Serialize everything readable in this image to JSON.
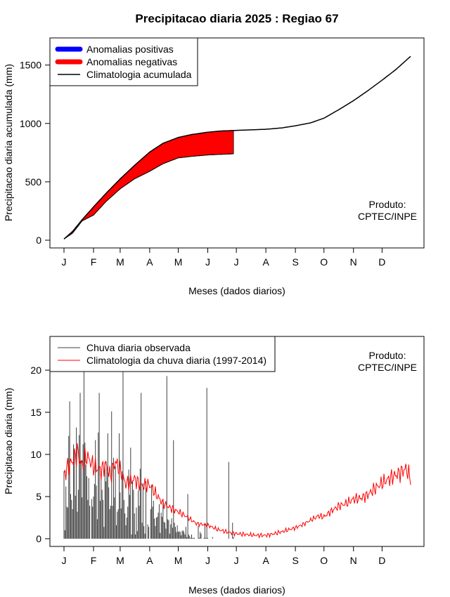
{
  "title": "Precipitacao diaria 2025 : Regiao 67",
  "product_note": {
    "line1": "Produto:",
    "line2": "CPTEC/INPE"
  },
  "colors": {
    "positive_anomaly": "#0000ff",
    "negative_anomaly": "#ff0000",
    "climatology_cumulative": "#000000",
    "observed_rain": "#404040",
    "climatology_daily": "#ff0000"
  },
  "chart_data": [
    {
      "type": "area",
      "name": "accumulated",
      "title": "Precipitacao diaria 2025 : Regiao 67",
      "xlabel": "Meses (dados diarios)",
      "ylabel": "Precipitacao diaria acumulada (mm)",
      "xlim": [
        1,
        365
      ],
      "ylim": [
        0,
        1600
      ],
      "month_ticks": [
        "J",
        "F",
        "M",
        "A",
        "M",
        "J",
        "J",
        "A",
        "S",
        "O",
        "N",
        "D"
      ],
      "month_tick_days": [
        1,
        32,
        60,
        91,
        121,
        152,
        182,
        213,
        244,
        274,
        305,
        335
      ],
      "y_ticks": [
        0,
        500,
        1000,
        1500
      ],
      "legend_position": "top-left",
      "legend": [
        "Anomalias positivas",
        "Anomalias negativas",
        "Climatologia acumulada"
      ],
      "climatology_cumulative": {
        "x": [
          1,
          10,
          20,
          32,
          45,
          60,
          75,
          91,
          105,
          121,
          135,
          152,
          165,
          180,
          200,
          213,
          230,
          244,
          260,
          274,
          290,
          305,
          320,
          335,
          350,
          365
        ],
        "y": [
          10,
          75,
          175,
          285,
          400,
          525,
          640,
          755,
          830,
          880,
          905,
          925,
          935,
          940,
          946,
          950,
          962,
          980,
          1005,
          1045,
          1120,
          1195,
          1280,
          1370,
          1465,
          1575
        ]
      },
      "observed_cumulative": {
        "x": [
          1,
          10,
          20,
          32,
          45,
          60,
          75,
          91,
          105,
          121,
          135,
          152,
          165,
          179
        ],
        "y": [
          10,
          60,
          165,
          215,
          330,
          440,
          525,
          590,
          655,
          705,
          718,
          730,
          735,
          740
        ]
      }
    },
    {
      "type": "line",
      "name": "daily",
      "xlabel": "Meses (dados diarios)",
      "ylabel": "Precipitacao diaria (mm)",
      "xlim": [
        1,
        365
      ],
      "ylim": [
        0,
        20
      ],
      "month_ticks": [
        "J",
        "F",
        "M",
        "A",
        "M",
        "J",
        "J",
        "A",
        "S",
        "O",
        "N",
        "D"
      ],
      "month_tick_days": [
        1,
        32,
        60,
        91,
        121,
        152,
        182,
        213,
        244,
        274,
        305,
        335
      ],
      "y_ticks": [
        0,
        5,
        10,
        15,
        20
      ],
      "legend_position": "top-left",
      "legend": [
        "Chuva diaria observada",
        "Climatologia da chuva diaria (1997-2014)"
      ],
      "observed_daily": {
        "day_start": 1,
        "values": [
          8.0,
          1.0,
          6.2,
          3.8,
          3.7,
          12.2,
          16.3,
          5.3,
          4.6,
          3.5,
          11.2,
          10.2,
          5.1,
          13.2,
          3.2,
          5.8,
          12.3,
          17.3,
          9.3,
          4.9,
          11.2,
          19.8,
          11.4,
          8.8,
          7.4,
          4.6,
          7.2,
          3.9,
          0.0,
          4.7,
          3.8,
          5.0,
          6.5,
          11.7,
          6.3,
          2.3,
          12.6,
          17.3,
          4.5,
          7.3,
          5.8,
          4.6,
          1.4,
          9.1,
          6.8,
          8.5,
          12.5,
          6.1,
          3.5,
          3.9,
          15.1,
          3.9,
          9.6,
          4.9,
          8.6,
          1.6,
          3.2,
          3.5,
          12.5,
          5.5,
          3.6,
          8.0,
          19.8,
          4.6,
          3.0,
          1.6,
          2.5,
          3.8,
          8.2,
          5.2,
          10.8,
          0.5,
          6.9,
          5.8,
          3.0,
          0.5,
          3.7,
          0.9,
          5.7,
          3.9,
          8.3,
          17.3,
          1.9,
          6.6,
          1.5,
          0.6,
          6.8,
          0.0,
          1.7,
          1.4,
          0.0,
          3.5,
          6.4,
          3.8,
          4.5,
          2.4,
          1.5,
          2.5,
          2.6,
          3.1,
          4.1,
          0.7,
          3.1,
          2.6,
          4.7,
          2.0,
          1.9,
          1.2,
          19.3,
          2.3,
          2.2,
          0.6,
          1.7,
          2.4,
          1.3,
          11.7,
          1.9,
          1.4,
          0.8,
          1.6,
          0.8,
          0.9,
          0.8,
          0.4,
          0.9,
          1.0,
          0.8,
          0.5,
          1.4,
          0.2,
          5.3,
          0.5,
          0.3,
          0.1,
          0.5,
          0.1,
          0.1,
          0.1,
          0.0,
          0.0,
          0.0,
          1.5,
          0.1,
          0.8,
          0.6,
          0.0,
          0.0,
          0.1,
          1.8,
          0.1,
          17.9,
          0.1,
          0.0,
          0.0,
          0.0,
          0.0,
          0.2,
          0.0,
          0.0,
          0.0,
          0.0,
          0.0,
          0.0,
          0.0,
          0.0,
          0.0,
          0.0,
          0.0,
          0.0,
          0.0,
          0.0,
          0.0,
          0.0,
          9.1,
          0.0,
          0.0,
          0.0,
          1.9,
          0.2
        ]
      },
      "climatology_daily": {
        "x": [
          1,
          5,
          10,
          15,
          20,
          25,
          32,
          40,
          45,
          50,
          55,
          60,
          66,
          75,
          82,
          91,
          98,
          105,
          112,
          121,
          130,
          140,
          152,
          162,
          172,
          182,
          192,
          202,
          213,
          222,
          232,
          244,
          252,
          260,
          268,
          274,
          282,
          290,
          298,
          305,
          312,
          320,
          328,
          335,
          345,
          352,
          360,
          365
        ],
        "y": [
          7.5,
          8.6,
          9.2,
          10.3,
          8.6,
          9.8,
          8.6,
          8.1,
          8.8,
          7.4,
          9.2,
          8.0,
          6.5,
          7.1,
          6.3,
          6.4,
          5.2,
          4.2,
          3.7,
          3.2,
          2.6,
          1.8,
          1.6,
          1.1,
          0.8,
          0.6,
          0.5,
          0.4,
          0.4,
          0.6,
          0.9,
          1.3,
          1.7,
          2.2,
          2.7,
          2.6,
          3.3,
          3.9,
          4.2,
          4.7,
          4.8,
          5.2,
          6.0,
          6.6,
          7.3,
          7.7,
          8.3,
          7.2
        ]
      }
    }
  ]
}
